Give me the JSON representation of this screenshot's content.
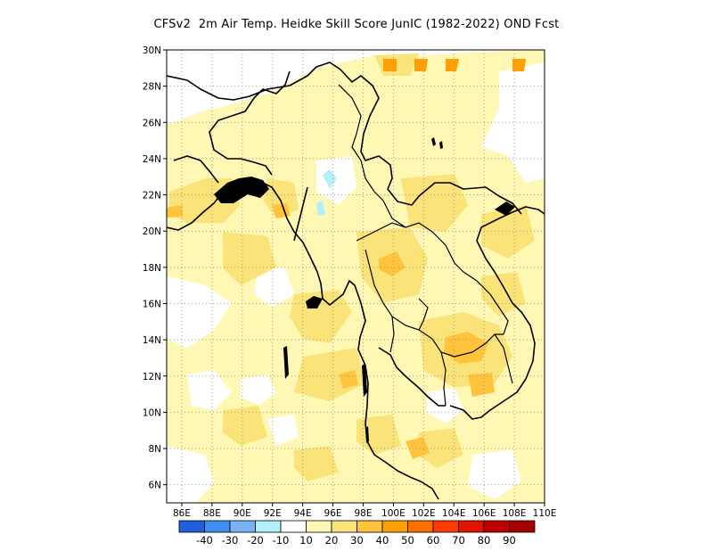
{
  "title": "CFSv2  2m Air Temp. Heidke Skill Score JunIC (1982-2022) OND Fcst",
  "map": {
    "lon_range": [
      85,
      110
    ],
    "lat_range": [
      5,
      30
    ],
    "grid": true,
    "lon_ticks": [
      "86E",
      "88E",
      "90E",
      "92E",
      "94E",
      "96E",
      "98E",
      "100E",
      "102E",
      "104E",
      "106E",
      "108E",
      "110E"
    ],
    "lat_ticks": [
      "6N",
      "8N",
      "10N",
      "12N",
      "14N",
      "16N",
      "18N",
      "20N",
      "22N",
      "24N",
      "26N",
      "28N",
      "30N"
    ],
    "regions": [
      {
        "name": "broad-yellow",
        "level": 10
      },
      {
        "name": "northeast-india-orange",
        "level": 20
      },
      {
        "name": "myanmar-coast-orange",
        "level": 20
      },
      {
        "name": "thailand-orange",
        "level": 20
      },
      {
        "name": "cambodia-orange",
        "level": 20
      },
      {
        "name": "north-edge-red",
        "level": 40
      },
      {
        "name": "gulf-thailand-red",
        "level": 30
      },
      {
        "name": "laos-red",
        "level": 30
      },
      {
        "name": "cambodia-red",
        "level": 30
      },
      {
        "name": "myanmar-blue",
        "level": -10
      }
    ]
  },
  "colorbar": {
    "colors": [
      "#1f5fdc",
      "#3f8ff0",
      "#78b4f4",
      "#b4f0fa",
      "#ffffff",
      "#fff8b4",
      "#fae378",
      "#ffc33c",
      "#ffa000",
      "#ff6e00",
      "#ff3c00",
      "#e11400",
      "#c00000",
      "#a50000"
    ],
    "labels": [
      "-40",
      "-30",
      "-20",
      "-10",
      "10",
      "20",
      "30",
      "40",
      "50",
      "60",
      "70",
      "80",
      "90"
    ]
  }
}
